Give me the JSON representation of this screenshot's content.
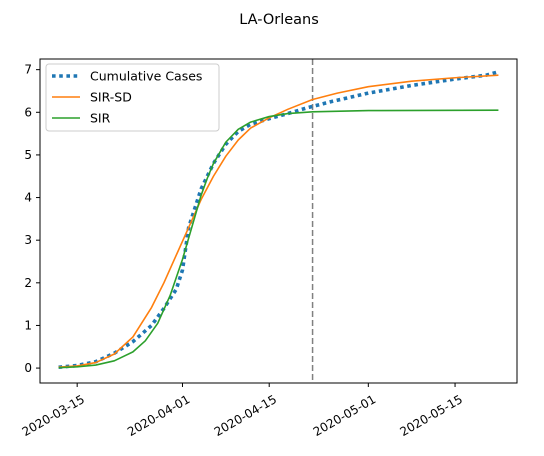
{
  "chart_data": {
    "type": "line",
    "title": "LA-Orleans",
    "xlabel": "",
    "ylabel": "",
    "x_range": [
      "2020-03-09",
      "2020-05-25"
    ],
    "ylim": [
      -0.35,
      7.25
    ],
    "x_ticks": [
      "2020-03-15",
      "2020-04-01",
      "2020-04-15",
      "2020-05-01",
      "2020-05-15"
    ],
    "y_ticks": [
      0,
      1,
      2,
      3,
      4,
      5,
      6,
      7
    ],
    "grid": false,
    "legend_position": "top-left",
    "vertical_line": {
      "x": "2020-04-22",
      "style": "dashed",
      "color": "#808080"
    },
    "series": [
      {
        "name": "Cumulative Cases",
        "style": "dotted",
        "color": "#1f77b4",
        "points": [
          [
            "2020-03-12",
            0.02
          ],
          [
            "2020-03-15",
            0.06
          ],
          [
            "2020-03-18",
            0.15
          ],
          [
            "2020-03-21",
            0.35
          ],
          [
            "2020-03-24",
            0.62
          ],
          [
            "2020-03-27",
            1.0
          ],
          [
            "2020-03-29",
            1.4
          ],
          [
            "2020-03-31",
            1.85
          ],
          [
            "2020-04-01",
            2.3
          ],
          [
            "2020-04-02",
            3.3
          ],
          [
            "2020-04-04",
            4.2
          ],
          [
            "2020-04-06",
            4.8
          ],
          [
            "2020-04-08",
            5.25
          ],
          [
            "2020-04-10",
            5.55
          ],
          [
            "2020-04-12",
            5.72
          ],
          [
            "2020-04-15",
            5.85
          ],
          [
            "2020-04-18",
            5.97
          ],
          [
            "2020-04-21",
            6.1
          ],
          [
            "2020-04-25",
            6.25
          ],
          [
            "2020-05-01",
            6.45
          ],
          [
            "2020-05-08",
            6.63
          ],
          [
            "2020-05-15",
            6.78
          ],
          [
            "2020-05-20",
            6.87
          ],
          [
            "2020-05-22",
            6.95
          ]
        ]
      },
      {
        "name": "SIR-SD",
        "style": "solid",
        "color": "#ff7f0e",
        "points": [
          [
            "2020-03-12",
            0.02
          ],
          [
            "2020-03-15",
            0.05
          ],
          [
            "2020-03-18",
            0.13
          ],
          [
            "2020-03-21",
            0.33
          ],
          [
            "2020-03-24",
            0.73
          ],
          [
            "2020-03-27",
            1.42
          ],
          [
            "2020-03-29",
            2.0
          ],
          [
            "2020-03-31",
            2.65
          ],
          [
            "2020-04-02",
            3.3
          ],
          [
            "2020-04-04",
            3.95
          ],
          [
            "2020-04-06",
            4.5
          ],
          [
            "2020-04-08",
            4.97
          ],
          [
            "2020-04-10",
            5.35
          ],
          [
            "2020-04-12",
            5.63
          ],
          [
            "2020-04-15",
            5.87
          ],
          [
            "2020-04-18",
            6.07
          ],
          [
            "2020-04-22",
            6.3
          ],
          [
            "2020-04-26",
            6.45
          ],
          [
            "2020-05-01",
            6.6
          ],
          [
            "2020-05-08",
            6.73
          ],
          [
            "2020-05-15",
            6.81
          ],
          [
            "2020-05-22",
            6.87
          ]
        ]
      },
      {
        "name": "SIR",
        "style": "solid",
        "color": "#2ca02c",
        "points": [
          [
            "2020-03-12",
            0.01
          ],
          [
            "2020-03-15",
            0.03
          ],
          [
            "2020-03-18",
            0.07
          ],
          [
            "2020-03-21",
            0.17
          ],
          [
            "2020-03-24",
            0.38
          ],
          [
            "2020-03-26",
            0.64
          ],
          [
            "2020-03-28",
            1.05
          ],
          [
            "2020-03-30",
            1.7
          ],
          [
            "2020-04-01",
            2.55
          ],
          [
            "2020-04-02",
            3.05
          ],
          [
            "2020-04-03",
            3.55
          ],
          [
            "2020-04-04",
            4.05
          ],
          [
            "2020-04-05",
            4.45
          ],
          [
            "2020-04-06",
            4.8
          ],
          [
            "2020-04-08",
            5.3
          ],
          [
            "2020-04-10",
            5.6
          ],
          [
            "2020-04-12",
            5.77
          ],
          [
            "2020-04-15",
            5.9
          ],
          [
            "2020-04-18",
            5.97
          ],
          [
            "2020-04-22",
            6.01
          ],
          [
            "2020-05-01",
            6.04
          ],
          [
            "2020-05-22",
            6.05
          ]
        ]
      }
    ]
  }
}
